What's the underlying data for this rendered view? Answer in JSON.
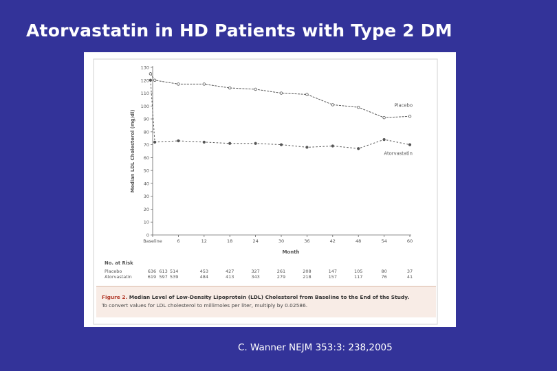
{
  "slide": {
    "title": "Atorvastatin in HD Patients with Type 2 DM",
    "citation": "C. Wanner NEJM 353:3: 238,2005"
  },
  "colors": {
    "background": "#333399",
    "title": "#ffffff",
    "series": "#555555",
    "caption_label": "#b23a2a"
  },
  "figure": {
    "caption_label": "Figure 2.",
    "caption_title": "Median Level of Low-Density Lipoprotein (LDL) Cholesterol from Baseline to the End of the Study.",
    "caption_text": "To convert values for LDL cholesterol to millimoles per liter, multiply by 0.02586.",
    "risk_heading": "No. at Risk"
  },
  "chart_data": {
    "type": "line",
    "title": "",
    "xlabel": "Month",
    "ylabel": "Median LDL Cholesterol (mg/dl)",
    "ylim": [
      0,
      130
    ],
    "yticks": [
      0,
      10,
      20,
      30,
      40,
      50,
      60,
      70,
      80,
      90,
      100,
      110,
      120,
      130
    ],
    "xticks": [
      "Baseline",
      "6",
      "12",
      "18",
      "24",
      "30",
      "36",
      "42",
      "48",
      "54",
      "60"
    ],
    "grid": false,
    "legend": "inline-right",
    "series": [
      {
        "name": "Placebo",
        "points": [
          [
            -0.5,
            125
          ],
          [
            0.5,
            120
          ],
          [
            6,
            117
          ],
          [
            12,
            117
          ],
          [
            18,
            114
          ],
          [
            24,
            113
          ],
          [
            30,
            110
          ],
          [
            36,
            109
          ],
          [
            42,
            101
          ],
          [
            48,
            99
          ],
          [
            54,
            91
          ],
          [
            60,
            92
          ]
        ]
      },
      {
        "name": "Atorvastatin",
        "points": [
          [
            -0.5,
            120
          ],
          [
            0.5,
            72
          ],
          [
            6,
            73
          ],
          [
            12,
            72
          ],
          [
            18,
            71
          ],
          [
            24,
            71
          ],
          [
            30,
            70
          ],
          [
            36,
            68
          ],
          [
            42,
            69
          ],
          [
            48,
            67
          ],
          [
            54,
            74
          ],
          [
            60,
            70
          ]
        ]
      }
    ],
    "at_risk": [
      {
        "name": "Placebo",
        "values": [
          "636",
          "613",
          "514",
          "453",
          "427",
          "327",
          "261",
          "208",
          "147",
          "105",
          "80",
          "37"
        ]
      },
      {
        "name": "Atorvastatin",
        "values": [
          "619",
          "597",
          "539",
          "484",
          "413",
          "343",
          "279",
          "218",
          "157",
          "117",
          "76",
          "41"
        ]
      }
    ]
  }
}
